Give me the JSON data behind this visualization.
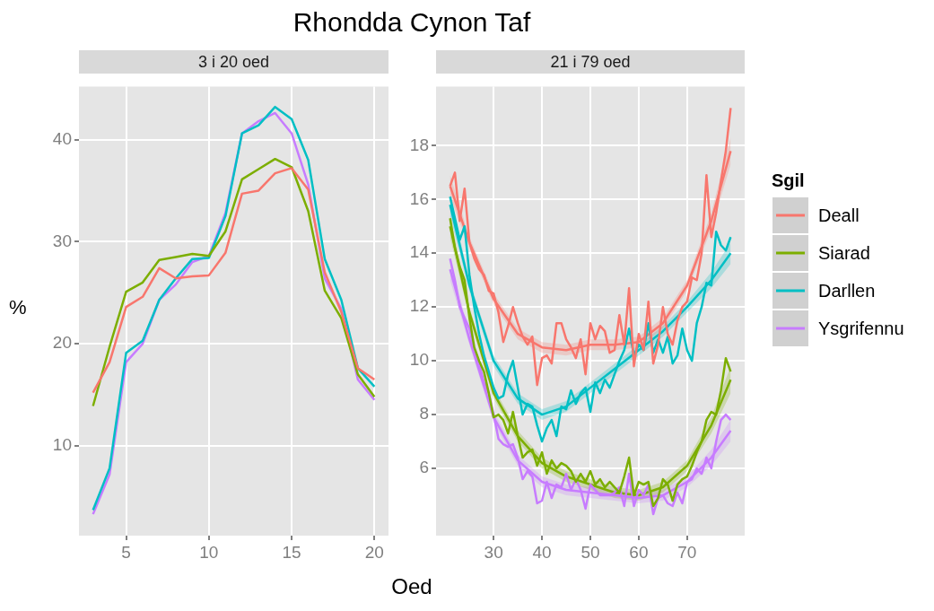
{
  "chart_data": [
    {
      "type": "line",
      "title": "Rhondda Cynon Taf",
      "subtitle": "3 i 20 oed",
      "xlabel": "Oed",
      "ylabel": "%",
      "x": [
        3,
        4,
        5,
        6,
        7,
        8,
        9,
        10,
        11,
        12,
        13,
        14,
        15,
        16,
        17,
        18,
        19,
        20
      ],
      "xlim": [
        2.15,
        20.85
      ],
      "xticks": [
        5,
        10,
        15,
        20
      ],
      "ylim": [
        1.2,
        45.2
      ],
      "yticks": [
        10,
        20,
        30,
        40
      ],
      "grid": true,
      "legend": false,
      "marker": "none",
      "line_style": "solid",
      "series": [
        {
          "color": "#f8766d",
          "values": [
            15.2,
            18.2,
            23.6,
            24.6,
            27.4,
            26.4,
            26.6,
            26.7,
            28.9,
            34.7,
            35.0,
            36.7,
            37.2,
            35.1,
            27.0,
            23.1,
            17.6,
            16.5
          ]
        },
        {
          "color": "#7cae00",
          "values": [
            13.9,
            19.7,
            25.1,
            26.0,
            28.2,
            28.5,
            28.8,
            28.6,
            31.0,
            36.1,
            37.1,
            38.1,
            37.3,
            33.0,
            25.2,
            22.5,
            17.0,
            14.8
          ]
        },
        {
          "color": "#00bfc4",
          "values": [
            3.7,
            7.8,
            19.1,
            20.3,
            24.3,
            26.4,
            28.3,
            28.4,
            32.5,
            40.6,
            41.4,
            43.2,
            42.0,
            38.0,
            28.3,
            24.3,
            17.6,
            15.8
          ]
        },
        {
          "color": "#c77cff",
          "values": [
            3.3,
            7.2,
            18.2,
            20.0,
            24.3,
            25.8,
            28.0,
            28.6,
            32.8,
            40.6,
            41.8,
            42.6,
            40.6,
            35.6,
            26.4,
            23.4,
            16.5,
            14.5
          ]
        }
      ]
    },
    {
      "type": "line",
      "subtitle": "21 i 79 oed",
      "legend_title": "Sgil",
      "legend": "right",
      "x": [
        21,
        22,
        23,
        24,
        25,
        26,
        27,
        28,
        29,
        30,
        31,
        32,
        33,
        34,
        35,
        36,
        37,
        38,
        39,
        40,
        41,
        42,
        43,
        44,
        45,
        46,
        47,
        48,
        49,
        50,
        51,
        52,
        53,
        54,
        55,
        56,
        57,
        58,
        59,
        60,
        61,
        62,
        63,
        64,
        65,
        66,
        67,
        68,
        69,
        70,
        71,
        72,
        73,
        74,
        75,
        76,
        77,
        78,
        79
      ],
      "xlim": [
        18.1,
        81.9
      ],
      "xticks": [
        30,
        40,
        50,
        60,
        70
      ],
      "ylim": [
        3.5,
        20.2
      ],
      "yticks": [
        6,
        8,
        10,
        12,
        14,
        16,
        18
      ],
      "grid": true,
      "marker": "none",
      "line_style": "solid",
      "series": [
        {
          "name": "Deall",
          "color": "#f8766d",
          "values": [
            16.5,
            17.0,
            15.2,
            16.4,
            14.4,
            13.8,
            13.4,
            13.2,
            12.6,
            12.5,
            11.8,
            10.7,
            11.3,
            12.0,
            11.4,
            10.9,
            10.6,
            10.9,
            9.1,
            10.1,
            10.2,
            9.9,
            11.4,
            11.4,
            10.8,
            10.5,
            10.1,
            10.8,
            9.5,
            11.4,
            10.8,
            11.3,
            11.1,
            10.3,
            10.4,
            11.7,
            10.6,
            12.7,
            9.8,
            11.0,
            10.4,
            12.2,
            9.9,
            10.6,
            12.0,
            11.0,
            10.6,
            11.5,
            12.0,
            12.2,
            13.1,
            13.0,
            14.0,
            16.9,
            14.6,
            15.5,
            16.7,
            17.8,
            19.4
          ]
        },
        {
          "name": "Siarad",
          "color": "#7cae00",
          "values": [
            15.3,
            14.2,
            13.5,
            13.0,
            11.6,
            10.5,
            10.0,
            9.6,
            8.8,
            7.9,
            8.0,
            7.8,
            7.3,
            8.1,
            7.2,
            6.4,
            6.6,
            6.7,
            6.1,
            6.6,
            5.8,
            6.3,
            6.0,
            6.2,
            6.1,
            5.9,
            5.5,
            5.8,
            5.5,
            5.9,
            5.4,
            5.6,
            5.3,
            5.5,
            5.3,
            5.1,
            5.7,
            6.4,
            5.0,
            5.5,
            5.4,
            5.5,
            4.6,
            4.9,
            5.6,
            5.4,
            4.8,
            5.4,
            5.6,
            5.7,
            6.1,
            6.6,
            7.0,
            7.8,
            8.1,
            8.0,
            8.9,
            10.1,
            9.6
          ]
        },
        {
          "name": "Darllen",
          "color": "#00bfc4",
          "values": [
            16.1,
            15.3,
            14.5,
            15.0,
            13.2,
            12.0,
            11.0,
            10.2,
            9.6,
            9.0,
            8.6,
            8.7,
            9.5,
            10.0,
            9.0,
            8.0,
            8.4,
            8.3,
            7.6,
            7.0,
            7.5,
            7.8,
            7.2,
            8.3,
            8.2,
            8.9,
            8.4,
            8.8,
            9.0,
            8.1,
            9.2,
            8.8,
            9.3,
            9.0,
            9.5,
            10.0,
            10.4,
            11.2,
            10.2,
            10.6,
            10.4,
            11.4,
            10.3,
            10.8,
            10.3,
            10.9,
            9.9,
            10.2,
            11.2,
            10.4,
            10.0,
            11.4,
            12.0,
            12.9,
            12.8,
            14.8,
            14.3,
            14.1,
            14.6
          ]
        },
        {
          "name": "Ysgrifennu",
          "color": "#c77cff",
          "values": [
            13.8,
            13.0,
            12.0,
            11.6,
            11.2,
            10.4,
            9.9,
            9.2,
            8.8,
            8.0,
            7.1,
            6.9,
            6.8,
            6.9,
            6.4,
            5.6,
            5.9,
            5.7,
            4.7,
            4.8,
            5.5,
            4.9,
            5.4,
            5.3,
            5.8,
            5.2,
            5.6,
            5.2,
            4.5,
            5.4,
            5.2,
            5.0,
            5.0,
            5.0,
            5.1,
            5.3,
            4.6,
            5.8,
            4.6,
            5.2,
            5.0,
            5.4,
            4.3,
            4.9,
            5.0,
            4.7,
            4.6,
            5.1,
            4.7,
            5.5,
            5.6,
            6.0,
            5.8,
            6.4,
            6.0,
            7.0,
            7.8,
            8.0,
            7.8
          ]
        },
        {
          "type": "line",
          "color": "#f8766d",
          "x": [
            21,
            25,
            30,
            35,
            40,
            45,
            50,
            55,
            60,
            65,
            70,
            75,
            79
          ],
          "values": [
            16.5,
            14.4,
            12.3,
            11.0,
            10.5,
            10.4,
            10.6,
            10.6,
            10.7,
            11.4,
            12.8,
            15.2,
            17.8
          ],
          "lower": [
            16.1,
            14.2,
            12.1,
            10.8,
            10.3,
            10.2,
            10.4,
            10.4,
            10.5,
            11.2,
            12.6,
            14.9,
            17.3
          ],
          "upper": [
            16.9,
            14.6,
            12.5,
            11.2,
            10.7,
            10.6,
            10.8,
            10.8,
            10.9,
            11.6,
            13.0,
            15.5,
            18.3
          ]
        },
        {
          "type": "line",
          "color": "#7cae00",
          "x": [
            21,
            25,
            30,
            35,
            40,
            45,
            50,
            55,
            60,
            65,
            70,
            75,
            79
          ],
          "values": [
            15.0,
            11.8,
            8.8,
            7.2,
            6.2,
            5.7,
            5.4,
            5.1,
            5.0,
            5.3,
            6.1,
            7.6,
            9.3
          ],
          "lower": [
            14.6,
            11.6,
            8.6,
            7.0,
            6.0,
            5.5,
            5.2,
            4.9,
            4.8,
            5.1,
            5.9,
            7.3,
            8.8
          ],
          "upper": [
            15.4,
            12.0,
            9.0,
            7.4,
            6.4,
            5.9,
            5.6,
            5.3,
            5.2,
            5.5,
            6.3,
            7.9,
            9.8
          ]
        },
        {
          "type": "line",
          "color": "#00bfc4",
          "x": [
            21,
            25,
            30,
            35,
            40,
            45,
            50,
            55,
            60,
            65,
            70,
            75,
            79
          ],
          "values": [
            15.8,
            12.8,
            10.0,
            8.6,
            8.0,
            8.3,
            9.0,
            9.7,
            10.4,
            11.1,
            12.0,
            13.0,
            14.0
          ],
          "lower": [
            15.4,
            12.6,
            9.8,
            8.4,
            7.8,
            8.1,
            8.8,
            9.5,
            10.2,
            10.9,
            11.8,
            12.7,
            13.6
          ],
          "upper": [
            16.2,
            13.0,
            10.2,
            8.8,
            8.2,
            8.5,
            9.2,
            9.9,
            10.6,
            11.3,
            12.2,
            13.3,
            14.4
          ]
        },
        {
          "type": "line",
          "color": "#c77cff",
          "x": [
            21,
            25,
            30,
            35,
            40,
            45,
            50,
            55,
            60,
            65,
            70,
            75,
            79
          ],
          "values": [
            13.4,
            10.8,
            7.9,
            6.3,
            5.5,
            5.2,
            5.1,
            5.0,
            4.9,
            5.0,
            5.5,
            6.4,
            7.4
          ],
          "lower": [
            13.0,
            10.6,
            7.7,
            6.1,
            5.3,
            5.0,
            4.9,
            4.8,
            4.7,
            4.8,
            5.3,
            6.1,
            7.0
          ],
          "upper": [
            13.8,
            11.0,
            8.1,
            6.5,
            5.7,
            5.4,
            5.3,
            5.2,
            5.1,
            5.2,
            5.7,
            6.7,
            7.8
          ]
        }
      ]
    }
  ]
}
